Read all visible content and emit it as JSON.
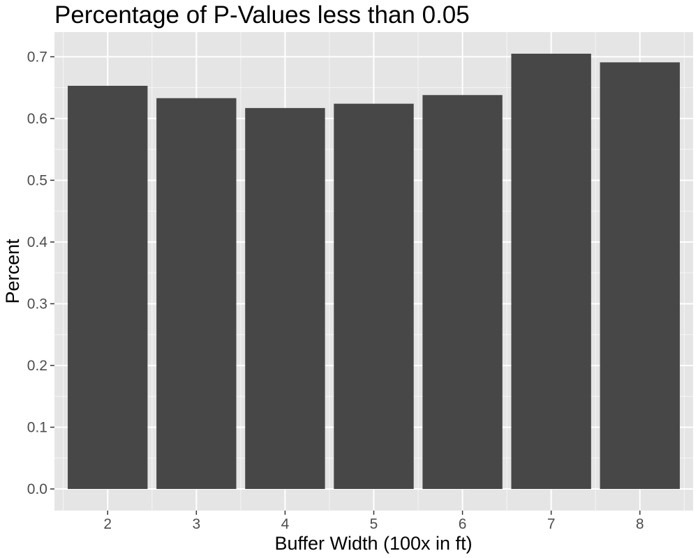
{
  "chart_data": {
    "type": "bar",
    "title": "Percentage of P-Values less than 0.05",
    "xlabel": "Buffer Width (100x in ft)",
    "ylabel": "Percent",
    "categories": [
      "2",
      "3",
      "4",
      "5",
      "6",
      "7",
      "8"
    ],
    "values": [
      0.653,
      0.633,
      0.617,
      0.624,
      0.638,
      0.705,
      0.691
    ],
    "ylim": [
      -0.035,
      0.74
    ],
    "yticks": [
      0.0,
      0.1,
      0.2,
      0.3,
      0.4,
      0.5,
      0.6,
      0.7
    ],
    "ytick_labels": [
      "0.0",
      "0.1",
      "0.2",
      "0.3",
      "0.4",
      "0.5",
      "0.6",
      "0.7"
    ],
    "grid": true,
    "bar_color": "#474747",
    "panel_background": "#e5e5e5",
    "grid_color": "#ffffff"
  }
}
